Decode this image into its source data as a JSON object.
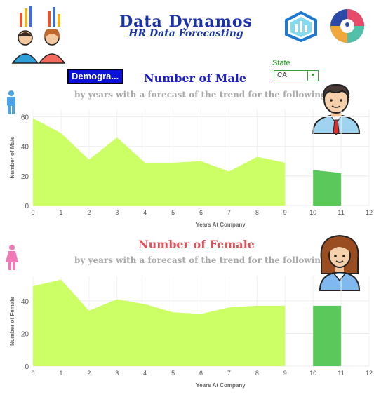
{
  "header": {
    "title": "Data Dynamos",
    "subtitle": "HR Data Forecasting"
  },
  "controls": {
    "demographics_button": "Demogra...",
    "state_label": "State",
    "state_value": "CA"
  },
  "colors": {
    "area": "#ccff66",
    "forecast": "#5bc85b",
    "title_blue": "#1b1bd0",
    "title_red": "#e0505a"
  },
  "chart_data": [
    {
      "type": "area",
      "title": "Number of  Male",
      "subtitle": "by years with a forecast of the trend for the following year",
      "xlabel": "Years At Company",
      "ylabel": "Number of Male",
      "x_ticks": [
        0,
        1,
        2,
        3,
        4,
        5,
        6,
        7,
        8,
        9,
        10,
        11,
        12
      ],
      "y_ticks": [
        0,
        20,
        40,
        60
      ],
      "xlim": [
        0,
        12
      ],
      "ylim": [
        0,
        65
      ],
      "series": [
        {
          "x": [
            0,
            1,
            2,
            3,
            4,
            5,
            6,
            7,
            8,
            9
          ],
          "values": [
            59,
            49,
            31,
            46,
            29,
            29,
            30,
            23,
            33,
            29
          ]
        }
      ],
      "forecast": {
        "x": [
          10,
          11
        ],
        "values": [
          24,
          22
        ]
      }
    },
    {
      "type": "area",
      "title": "Number of  Female",
      "subtitle": "by years with a forecast of the trend for the following year",
      "xlabel": "Years At Company",
      "ylabel": "Number of Female",
      "x_ticks": [
        0,
        1,
        2,
        3,
        4,
        5,
        6,
        7,
        8,
        9,
        10,
        11,
        12
      ],
      "y_ticks": [
        0,
        20,
        40
      ],
      "xlim": [
        0,
        12
      ],
      "ylim": [
        0,
        55
      ],
      "series": [
        {
          "x": [
            0,
            1,
            2,
            3,
            4,
            5,
            6,
            7,
            8,
            9
          ],
          "values": [
            49,
            53,
            34,
            41,
            38,
            33,
            32,
            36,
            37,
            37
          ]
        }
      ],
      "forecast": {
        "x": [
          10,
          11
        ],
        "values": [
          37,
          37
        ]
      }
    }
  ]
}
